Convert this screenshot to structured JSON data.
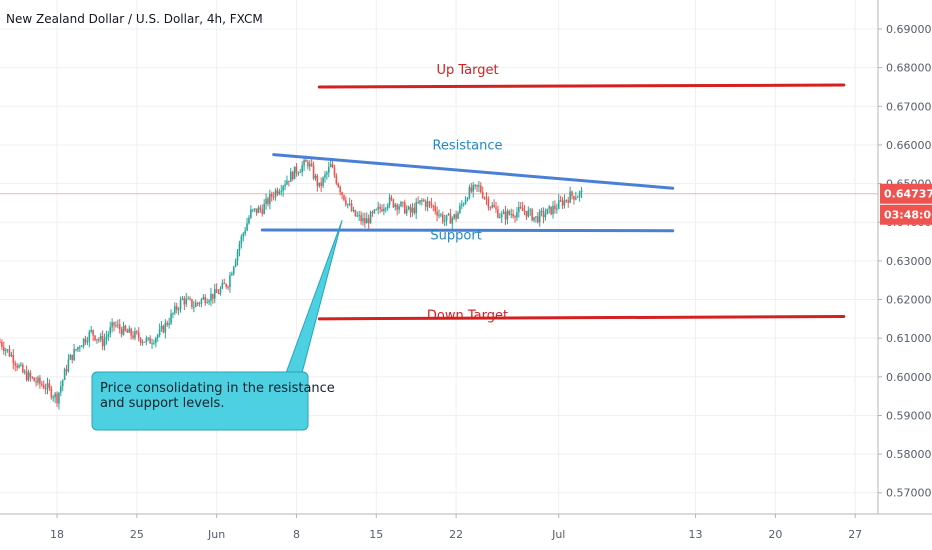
{
  "chart_data": {
    "type": "candlestick",
    "title": "New Zealand Dollar / U.S. Dollar, 4h, FXCM",
    "last_price_label": "0.64737",
    "last_price": 0.64737,
    "countdown_label": "03:48:06",
    "y_range": [
      0.5645,
      0.6975
    ],
    "y_ticks": [
      "0.69000",
      "0.68000",
      "0.67000",
      "0.66000",
      "0.65000",
      "0.64000",
      "0.63000",
      "0.62000",
      "0.61000",
      "0.60000",
      "0.59000",
      "0.58000",
      "0.57000"
    ],
    "y_tick_values": [
      0.69,
      0.68,
      0.67,
      0.66,
      0.65,
      0.64,
      0.63,
      0.62,
      0.61,
      0.6,
      0.59,
      0.58,
      0.57
    ],
    "x_ticks": [
      "18",
      "25",
      "Jun",
      "8",
      "15",
      "22",
      "Jul",
      "13",
      "20",
      "27"
    ],
    "x_range": [
      "2020-05-13",
      "2020-07-29"
    ],
    "x_tick_dates": [
      "2020-05-18",
      "2020-05-25",
      "2020-06-01",
      "2020-06-08",
      "2020-06-15",
      "2020-06-22",
      "2020-07-01",
      "2020-07-13",
      "2020-07-20",
      "2020-07-27"
    ],
    "price_path": [
      [
        "2020-05-13",
        0.609
      ],
      [
        "2020-05-14",
        0.6055
      ],
      [
        "2020-05-15",
        0.601
      ],
      [
        "2020-05-16",
        0.599
      ],
      [
        "2020-05-17",
        0.5975
      ],
      [
        "2020-05-18",
        0.5945
      ],
      [
        "2020-05-19",
        0.604
      ],
      [
        "2020-05-20",
        0.6085
      ],
      [
        "2020-05-21",
        0.6115
      ],
      [
        "2020-05-22",
        0.609
      ],
      [
        "2020-05-23",
        0.6135
      ],
      [
        "2020-05-24",
        0.6115
      ],
      [
        "2020-05-25",
        0.6105
      ],
      [
        "2020-05-26",
        0.609
      ],
      [
        "2020-05-27",
        0.6112
      ],
      [
        "2020-05-28",
        0.6155
      ],
      [
        "2020-05-29",
        0.62
      ],
      [
        "2020-05-30",
        0.6185
      ],
      [
        "2020-05-31",
        0.6205
      ],
      [
        "2020-06-01",
        0.6215
      ],
      [
        "2020-06-02",
        0.6245
      ],
      [
        "2020-06-03",
        0.6345
      ],
      [
        "2020-06-04",
        0.6425
      ],
      [
        "2020-06-05",
        0.6435
      ],
      [
        "2020-06-06",
        0.6475
      ],
      [
        "2020-06-07",
        0.6505
      ],
      [
        "2020-06-08",
        0.6535
      ],
      [
        "2020-06-09",
        0.6555
      ],
      [
        "2020-06-10",
        0.649
      ],
      [
        "2020-06-11",
        0.6545
      ],
      [
        "2020-06-12",
        0.6475
      ],
      [
        "2020-06-13",
        0.642
      ],
      [
        "2020-06-14",
        0.64
      ],
      [
        "2020-06-15",
        0.6425
      ],
      [
        "2020-06-16",
        0.6455
      ],
      [
        "2020-06-17",
        0.6445
      ],
      [
        "2020-06-18",
        0.6425
      ],
      [
        "2020-06-19",
        0.6455
      ],
      [
        "2020-06-20",
        0.644
      ],
      [
        "2020-06-21",
        0.6405
      ],
      [
        "2020-06-22",
        0.6415
      ],
      [
        "2020-06-23",
        0.6475
      ],
      [
        "2020-06-24",
        0.649
      ],
      [
        "2020-06-25",
        0.6445
      ],
      [
        "2020-06-26",
        0.6415
      ],
      [
        "2020-06-27",
        0.6425
      ],
      [
        "2020-06-28",
        0.643
      ],
      [
        "2020-06-29",
        0.641
      ],
      [
        "2020-06-30",
        0.6425
      ],
      [
        "2020-07-01",
        0.6445
      ],
      [
        "2020-07-02",
        0.6468
      ],
      [
        "2020-07-03",
        0.64737
      ]
    ],
    "lines": [
      {
        "label": "Up Target",
        "color": "#d32020",
        "start": [
          "2020-06-10",
          0.675
        ],
        "end": [
          "2020-07-26",
          0.6755
        ]
      },
      {
        "label": "Down Target",
        "color": "#d32020",
        "start": [
          "2020-06-10",
          0.615
        ],
        "end": [
          "2020-07-26",
          0.6156
        ]
      },
      {
        "label": "Resistance",
        "color": "#4a7fd6",
        "start": [
          "2020-06-06",
          0.6575
        ],
        "end": [
          "2020-07-11",
          0.6488
        ]
      },
      {
        "label": "Support",
        "color": "#4a7fd6",
        "start": [
          "2020-06-05",
          0.638
        ],
        "end": [
          "2020-07-11",
          0.6378
        ]
      }
    ],
    "line_label_anchors": {
      "Up Target": [
        "2020-06-23",
        0.6783
      ],
      "Resistance": [
        "2020-06-23",
        0.6588
      ],
      "Support": [
        "2020-06-22",
        0.6355
      ],
      "Down Target": [
        "2020-06-23",
        0.6148
      ]
    },
    "callout": {
      "lines": [
        "Price consolidating in the resistance",
        "and support levels."
      ],
      "pointer_to": [
        "2020-06-12",
        0.6405
      ]
    },
    "grid": true,
    "colors": {
      "up": "#26a69a",
      "down": "#ef5350",
      "price_badge": "#ef5350",
      "callout_fill": "#4dd0e1",
      "callout_border": "#26a5b8",
      "grid": "#eef0f3",
      "axis": "#b2b5be"
    }
  }
}
